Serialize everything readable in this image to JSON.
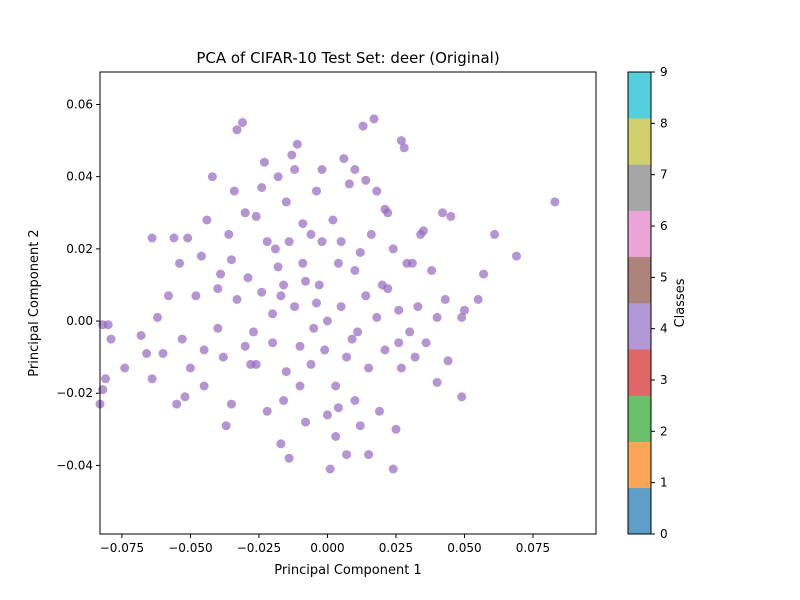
{
  "chart_data": {
    "type": "scatter",
    "title": "PCA of CIFAR-10 Test Set: deer (Original)",
    "xlabel": "Principal Component 1",
    "ylabel": "Principal Component 2",
    "xlim": [
      -0.083,
      0.098
    ],
    "ylim": [
      -0.059,
      0.069
    ],
    "xticks": [
      -0.075,
      -0.05,
      -0.025,
      0.0,
      0.025,
      0.05,
      0.075
    ],
    "xtick_labels": [
      "−0.075",
      "−0.050",
      "−0.025",
      "0.000",
      "0.025",
      "0.050",
      "0.075"
    ],
    "yticks": [
      -0.04,
      -0.02,
      0.0,
      0.02,
      0.04,
      0.06
    ],
    "ytick_labels": [
      "−0.04",
      "−0.02",
      "0.00",
      "0.02",
      "0.04",
      "0.06"
    ],
    "grid": false,
    "point_color": "#9467bd",
    "point_alpha": 0.7,
    "series": [
      {
        "class": 4,
        "points": [
          [
            0.083,
            0.033
          ],
          [
            0.069,
            0.018
          ],
          [
            0.061,
            0.024
          ],
          [
            0.057,
            0.013
          ],
          [
            0.055,
            0.006
          ],
          [
            0.05,
            0.003
          ],
          [
            0.049,
            0.001
          ],
          [
            0.049,
            -0.021
          ],
          [
            0.045,
            0.029
          ],
          [
            0.043,
            0.006
          ],
          [
            0.042,
            0.03
          ],
          [
            0.04,
            -0.017
          ],
          [
            0.038,
            0.014
          ],
          [
            0.035,
            0.025
          ],
          [
            0.034,
            0.024
          ],
          [
            0.032,
            -0.01
          ],
          [
            0.031,
            0.016
          ],
          [
            0.029,
            0.016
          ],
          [
            0.028,
            0.048
          ],
          [
            0.027,
            0.05
          ],
          [
            0.026,
            -0.006
          ],
          [
            0.025,
            -0.03
          ],
          [
            0.024,
            0.02
          ],
          [
            0.024,
            -0.041
          ],
          [
            0.022,
            0.03
          ],
          [
            0.021,
            0.031
          ],
          [
            0.02,
            0.01
          ],
          [
            0.019,
            -0.025
          ],
          [
            0.018,
            0.036
          ],
          [
            0.017,
            0.056
          ],
          [
            0.015,
            -0.037
          ],
          [
            0.014,
            0.039
          ],
          [
            0.013,
            0.054
          ],
          [
            0.012,
            -0.029
          ],
          [
            0.01,
            0.042
          ],
          [
            0.008,
            0.038
          ],
          [
            0.007,
            -0.037
          ],
          [
            0.006,
            0.045
          ],
          [
            0.005,
            0.022
          ],
          [
            0.004,
            -0.024
          ],
          [
            0.001,
            -0.041
          ],
          [
            0.0,
            -0.026
          ],
          [
            -0.002,
            0.042
          ],
          [
            -0.004,
            0.036
          ],
          [
            -0.006,
            0.024
          ],
          [
            -0.008,
            0.011
          ],
          [
            -0.01,
            -0.018
          ],
          [
            -0.011,
            0.049
          ],
          [
            -0.012,
            0.042
          ],
          [
            -0.013,
            0.046
          ],
          [
            -0.014,
            -0.038
          ],
          [
            -0.015,
            0.033
          ],
          [
            -0.016,
            0.01
          ],
          [
            -0.017,
            -0.034
          ],
          [
            -0.018,
            0.04
          ],
          [
            -0.019,
            0.02
          ],
          [
            -0.02,
            -0.006
          ],
          [
            -0.022,
            -0.025
          ],
          [
            -0.023,
            0.044
          ],
          [
            -0.024,
            0.037
          ],
          [
            -0.026,
            0.029
          ],
          [
            -0.028,
            -0.012
          ],
          [
            -0.029,
            0.012
          ],
          [
            -0.03,
            0.03
          ],
          [
            -0.031,
            0.055
          ],
          [
            -0.033,
            0.053
          ],
          [
            -0.034,
            0.036
          ],
          [
            -0.035,
            -0.023
          ],
          [
            -0.036,
            0.024
          ],
          [
            -0.037,
            -0.029
          ],
          [
            -0.039,
            0.013
          ],
          [
            -0.04,
            -0.002
          ],
          [
            -0.042,
            0.04
          ],
          [
            -0.044,
            0.028
          ],
          [
            -0.045,
            -0.018
          ],
          [
            -0.046,
            0.018
          ],
          [
            -0.048,
            0.007
          ],
          [
            -0.05,
            -0.013
          ],
          [
            -0.051,
            0.023
          ],
          [
            -0.052,
            -0.021
          ],
          [
            -0.053,
            -0.005
          ],
          [
            -0.054,
            0.016
          ],
          [
            -0.055,
            -0.023
          ],
          [
            -0.056,
            0.023
          ],
          [
            -0.058,
            0.007
          ],
          [
            -0.06,
            -0.009
          ],
          [
            -0.062,
            0.001
          ],
          [
            -0.064,
            -0.016
          ],
          [
            -0.064,
            0.023
          ],
          [
            -0.066,
            -0.009
          ],
          [
            -0.068,
            -0.004
          ],
          [
            -0.074,
            -0.013
          ],
          [
            -0.079,
            -0.005
          ],
          [
            -0.08,
            -0.001
          ],
          [
            -0.081,
            -0.016
          ],
          [
            -0.082,
            -0.019
          ],
          [
            -0.083,
            -0.023
          ],
          [
            -0.082,
            -0.001
          ],
          [
            -0.009,
            0.027
          ],
          [
            0.002,
            0.028
          ],
          [
            0.01,
            0.014
          ],
          [
            -0.003,
            0.01
          ],
          [
            0.0,
            0.0
          ],
          [
            -0.005,
            -0.002
          ],
          [
            0.005,
            0.004
          ],
          [
            -0.012,
            0.004
          ],
          [
            0.011,
            -0.003
          ],
          [
            -0.02,
            0.002
          ],
          [
            0.018,
            0.001
          ],
          [
            -0.027,
            -0.003
          ],
          [
            0.026,
            0.003
          ],
          [
            -0.006,
            -0.012
          ],
          [
            0.007,
            -0.01
          ],
          [
            -0.015,
            -0.014
          ],
          [
            0.015,
            -0.013
          ],
          [
            0.003,
            -0.018
          ],
          [
            -0.009,
            0.016
          ],
          [
            0.012,
            0.019
          ],
          [
            -0.018,
            0.015
          ],
          [
            -0.024,
            0.008
          ],
          [
            0.022,
            0.009
          ],
          [
            -0.033,
            0.006
          ],
          [
            0.033,
            0.004
          ],
          [
            -0.04,
            0.009
          ],
          [
            0.04,
            0.001
          ],
          [
            0.03,
            -0.003
          ],
          [
            -0.03,
            -0.007
          ],
          [
            -0.002,
            0.022
          ],
          [
            0.004,
            0.016
          ],
          [
            -0.014,
            0.022
          ],
          [
            0.016,
            0.024
          ],
          [
            -0.022,
            0.022
          ],
          [
            -0.038,
            -0.01
          ],
          [
            0.036,
            -0.006
          ],
          [
            -0.045,
            -0.008
          ],
          [
            -0.01,
            -0.007
          ],
          [
            0.009,
            -0.005
          ],
          [
            -0.001,
            -0.008
          ],
          [
            0.021,
            -0.008
          ],
          [
            -0.026,
            -0.012
          ],
          [
            0.027,
            -0.013
          ],
          [
            -0.016,
            -0.022
          ],
          [
            0.01,
            -0.022
          ],
          [
            -0.004,
            0.005
          ],
          [
            0.014,
            0.007
          ],
          [
            -0.017,
            0.007
          ],
          [
            -0.035,
            0.017
          ],
          [
            0.044,
            -0.011
          ],
          [
            0.003,
            -0.032
          ],
          [
            -0.008,
            -0.028
          ]
        ]
      }
    ]
  },
  "colorbar": {
    "label": "Classes",
    "ticks": [
      "0",
      "1",
      "2",
      "3",
      "4",
      "5",
      "6",
      "7",
      "8",
      "9"
    ],
    "colors": [
      "#5f9ec8",
      "#fda556",
      "#6abf69",
      "#e06767",
      "#b299d6",
      "#ac8479",
      "#eba4d8",
      "#a6a6a6",
      "#d2d06d",
      "#56cfdc"
    ]
  }
}
